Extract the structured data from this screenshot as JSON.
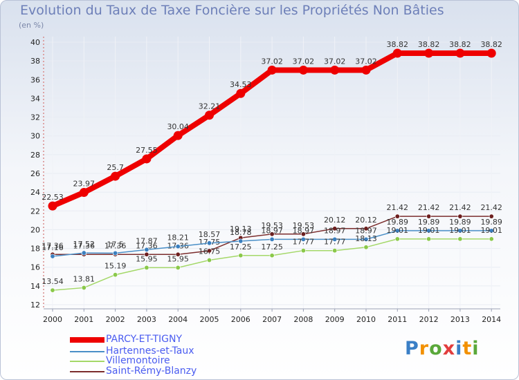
{
  "title": "Evolution du Taux de Taxe Foncière sur les Propriétés Non Bâties",
  "unit_label": "(en %)",
  "logo": {
    "text": "Proxiti",
    "letters": [
      "P",
      "r",
      "o",
      "x",
      "i",
      "t",
      "i"
    ],
    "colors": [
      "#3a7fc6",
      "#f29100",
      "#5aa83a",
      "#e23d3d",
      "#3a7fc6",
      "#f29100",
      "#5aa83a"
    ]
  },
  "chart_data": {
    "type": "line",
    "title": "Evolution du Taux de Taxe Foncière sur les Propriétés Non Bâties",
    "ylabel": "(en %)",
    "xlabel": "",
    "ylim": [
      12,
      40
    ],
    "yticks": [
      "12",
      "14",
      "16",
      "18",
      "20",
      "22",
      "24",
      "26",
      "28",
      "30",
      "32",
      "34",
      "36",
      "38",
      "40"
    ],
    "categories": [
      "2000",
      "2001",
      "2002",
      "2003",
      "2004",
      "2005",
      "2006",
      "2007",
      "2008",
      "2009",
      "2010",
      "2011",
      "2012",
      "2013",
      "2014"
    ],
    "series": [
      {
        "name": "Saint-Rémy-Blanzy",
        "color": "#7b2c2c",
        "marker": "#6d1f1f",
        "width": 1.5,
        "values": [
          17.36,
          17.36,
          17.36,
          17.36,
          17.36,
          17.75,
          19.13,
          19.53,
          19.53,
          20.12,
          20.12,
          21.42,
          21.42,
          21.42,
          21.42
        ],
        "labels": [
          "17.36",
          "17.36",
          "17.36",
          "17.36",
          "17.36",
          "17.75",
          "19.13",
          "19.53",
          "19.53",
          "20.12",
          "20.12",
          "21.42",
          "21.42",
          "21.42",
          "21.42"
        ]
      },
      {
        "name": "Hartennes-et-Taux",
        "color": "#4a8fc7",
        "marker": "#3a7fbf",
        "width": 1.5,
        "values": [
          17.16,
          17.52,
          17.5,
          17.87,
          18.21,
          18.57,
          18.78,
          18.97,
          18.97,
          18.97,
          18.97,
          19.89,
          19.89,
          19.89,
          19.89
        ],
        "labels": [
          "17.16",
          "17.52",
          "17.5",
          "17.87",
          "18.21",
          "18.57",
          "18.78",
          "18.97",
          "18.97",
          "18.97",
          "18.97",
          "19.89",
          "19.89",
          "19.89",
          "19.89"
        ]
      },
      {
        "name": "Villemontoire",
        "color": "#a4d868",
        "marker": "#8ac84a",
        "width": 1.5,
        "values": [
          13.54,
          13.81,
          15.19,
          15.95,
          15.95,
          16.75,
          17.25,
          17.25,
          17.77,
          17.77,
          18.13,
          19.01,
          19.01,
          19.01,
          19.01
        ],
        "labels": [
          "13.54",
          "13.81",
          "15.19",
          "15.95",
          "15.95",
          "16.75",
          "17.25",
          "17.25",
          "17.77",
          "17.77",
          "18.13",
          "19.01",
          "19.01",
          "19.01",
          "19.01"
        ]
      },
      {
        "name": "PARCY-ET-TIGNY",
        "color": "#ee0000",
        "marker": "#ee0000",
        "width": 8,
        "values": [
          22.53,
          23.97,
          25.7,
          27.55,
          30.04,
          32.21,
          34.53,
          37.02,
          37.02,
          37.02,
          37.02,
          38.82,
          38.82,
          38.82,
          38.82
        ],
        "labels": [
          "22.53",
          "23.97",
          "25.7",
          "27.55",
          "30.04",
          "32.21",
          "34.53",
          "37.02",
          "37.02",
          "37.02",
          "37.02",
          "38.82",
          "38.82",
          "38.82",
          "38.82"
        ]
      }
    ],
    "legend": [
      {
        "name": "PARCY-ET-TIGNY",
        "color": "#ee0000",
        "text_color": "#4a5cf0",
        "thickness": 8
      },
      {
        "name": "Hartennes-et-Taux",
        "color": "#4a8fc7",
        "text_color": "#4a5cf0",
        "thickness": 2
      },
      {
        "name": "Villemontoire",
        "color": "#a4d868",
        "text_color": "#4a5cf0",
        "thickness": 2
      },
      {
        "name": "Saint-Rémy-Blanzy",
        "color": "#7b2c2c",
        "text_color": "#4a5cf0",
        "thickness": 2
      }
    ],
    "legend_position": "bottom-left"
  }
}
